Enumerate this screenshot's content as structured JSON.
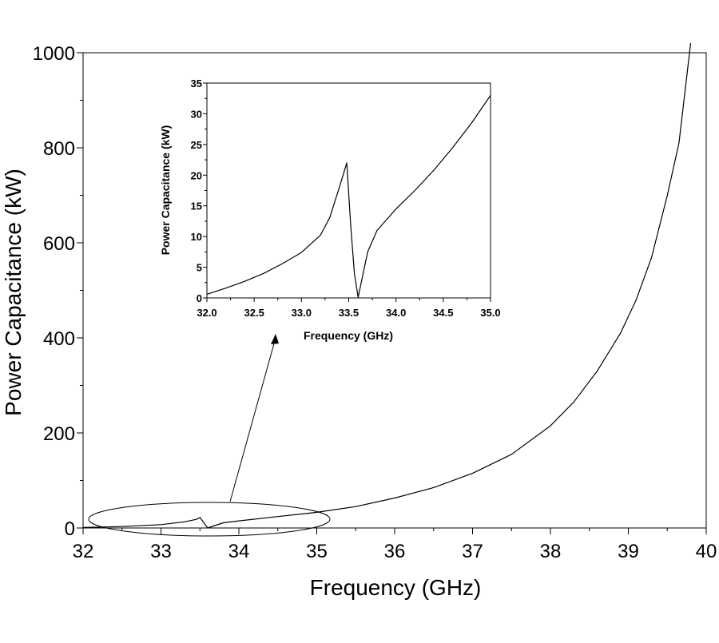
{
  "chart_data": [
    {
      "type": "line",
      "xlabel": "Frequency (GHz)",
      "ylabel": "Power Capacitance (kW)",
      "xlim": [
        32,
        40
      ],
      "ylim": [
        0,
        1000
      ],
      "x_ticks": [
        "32",
        "33",
        "34",
        "35",
        "36",
        "37",
        "38",
        "39",
        "40"
      ],
      "y_ticks": [
        "0",
        "200",
        "400",
        "600",
        "800",
        "1000"
      ],
      "grid": false,
      "legend": "none",
      "series": [
        {
          "x": [
            32.0,
            32.5,
            33.0,
            33.3,
            33.45,
            33.5,
            33.6,
            33.8,
            34.0,
            34.5,
            35.0,
            35.5,
            36.0,
            36.5,
            37.0,
            37.5,
            38.0,
            38.3,
            38.6,
            38.9,
            39.1,
            39.3,
            39.5,
            39.65,
            39.8
          ],
          "y": [
            1,
            3,
            7,
            13,
            18,
            22,
            0,
            11,
            15,
            24,
            33,
            45,
            63,
            85,
            115,
            155,
            215,
            265,
            330,
            410,
            480,
            570,
            700,
            810,
            1020
          ]
        }
      ],
      "annotations": [
        "ellipse around 32–35 GHz region",
        "arrow pointing to inset"
      ]
    },
    {
      "type": "line",
      "role": "inset",
      "xlabel": "Frequency (GHz)",
      "ylabel": "Power Capacitance (kW)",
      "xlim": [
        32.0,
        35.0
      ],
      "ylim": [
        0,
        35
      ],
      "x_ticks": [
        "32.0",
        "32.5",
        "33.0",
        "33.5",
        "34.0",
        "34.5",
        "35.0"
      ],
      "y_ticks": [
        "0",
        "5",
        "10",
        "15",
        "20",
        "25",
        "30",
        "35"
      ],
      "grid": false,
      "legend": "none",
      "series": [
        {
          "x": [
            32.0,
            32.2,
            32.4,
            32.6,
            32.8,
            33.0,
            33.2,
            33.3,
            33.4,
            33.48,
            33.52,
            33.56,
            33.6,
            33.7,
            33.8,
            34.0,
            34.2,
            34.4,
            34.6,
            34.8,
            35.0
          ],
          "y": [
            0.6,
            1.6,
            2.7,
            4.0,
            5.6,
            7.4,
            10.2,
            13.1,
            18.0,
            22.0,
            12.0,
            4.0,
            0.1,
            7.5,
            11.0,
            14.5,
            17.5,
            20.8,
            24.5,
            28.5,
            33.0
          ]
        }
      ]
    }
  ]
}
